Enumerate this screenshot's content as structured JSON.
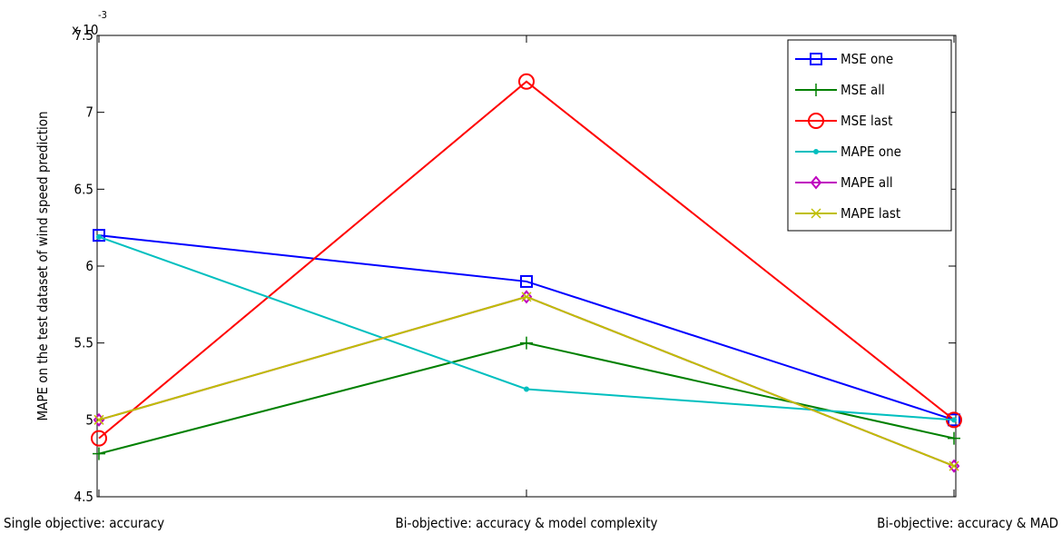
{
  "chart_data": {
    "type": "line",
    "title": "",
    "xlabel": "",
    "ylabel": "MAPE on the test dataset of wind speed prediction",
    "y_exponent_label": "x 10",
    "y_exponent": "-3",
    "categories": [
      "Single objective: accuracy",
      "Bi-objective: accuracy & model complexity",
      "Bi-objective: accuracy & MAD"
    ],
    "ylim": [
      4.5,
      7.5
    ],
    "yticks": [
      4.5,
      5,
      5.5,
      6,
      6.5,
      7,
      7.5
    ],
    "ytick_labels": [
      "4.5",
      "5",
      "5.5",
      "6",
      "6.5",
      "7",
      "7.5"
    ],
    "grid": false,
    "legend_position": "top-right",
    "series": [
      {
        "name": "MSE one",
        "color": "#0000ff",
        "marker": "square",
        "values": [
          6.2,
          5.9,
          5.0
        ]
      },
      {
        "name": "MSE all",
        "color": "#008000",
        "marker": "plus",
        "values": [
          4.78,
          5.5,
          4.88
        ]
      },
      {
        "name": "MSE last",
        "color": "#ff0000",
        "marker": "circle",
        "values": [
          4.88,
          7.2,
          5.0
        ]
      },
      {
        "name": "MAPE one",
        "color": "#00bfbf",
        "marker": "point",
        "values": [
          6.19,
          5.2,
          5.0
        ]
      },
      {
        "name": "MAPE all",
        "color": "#bf00bf",
        "marker": "diamond",
        "values": [
          5.0,
          5.8,
          4.7
        ]
      },
      {
        "name": "MAPE last",
        "color": "#bfbf00",
        "marker": "x",
        "values": [
          5.0,
          5.8,
          4.7
        ]
      }
    ]
  }
}
